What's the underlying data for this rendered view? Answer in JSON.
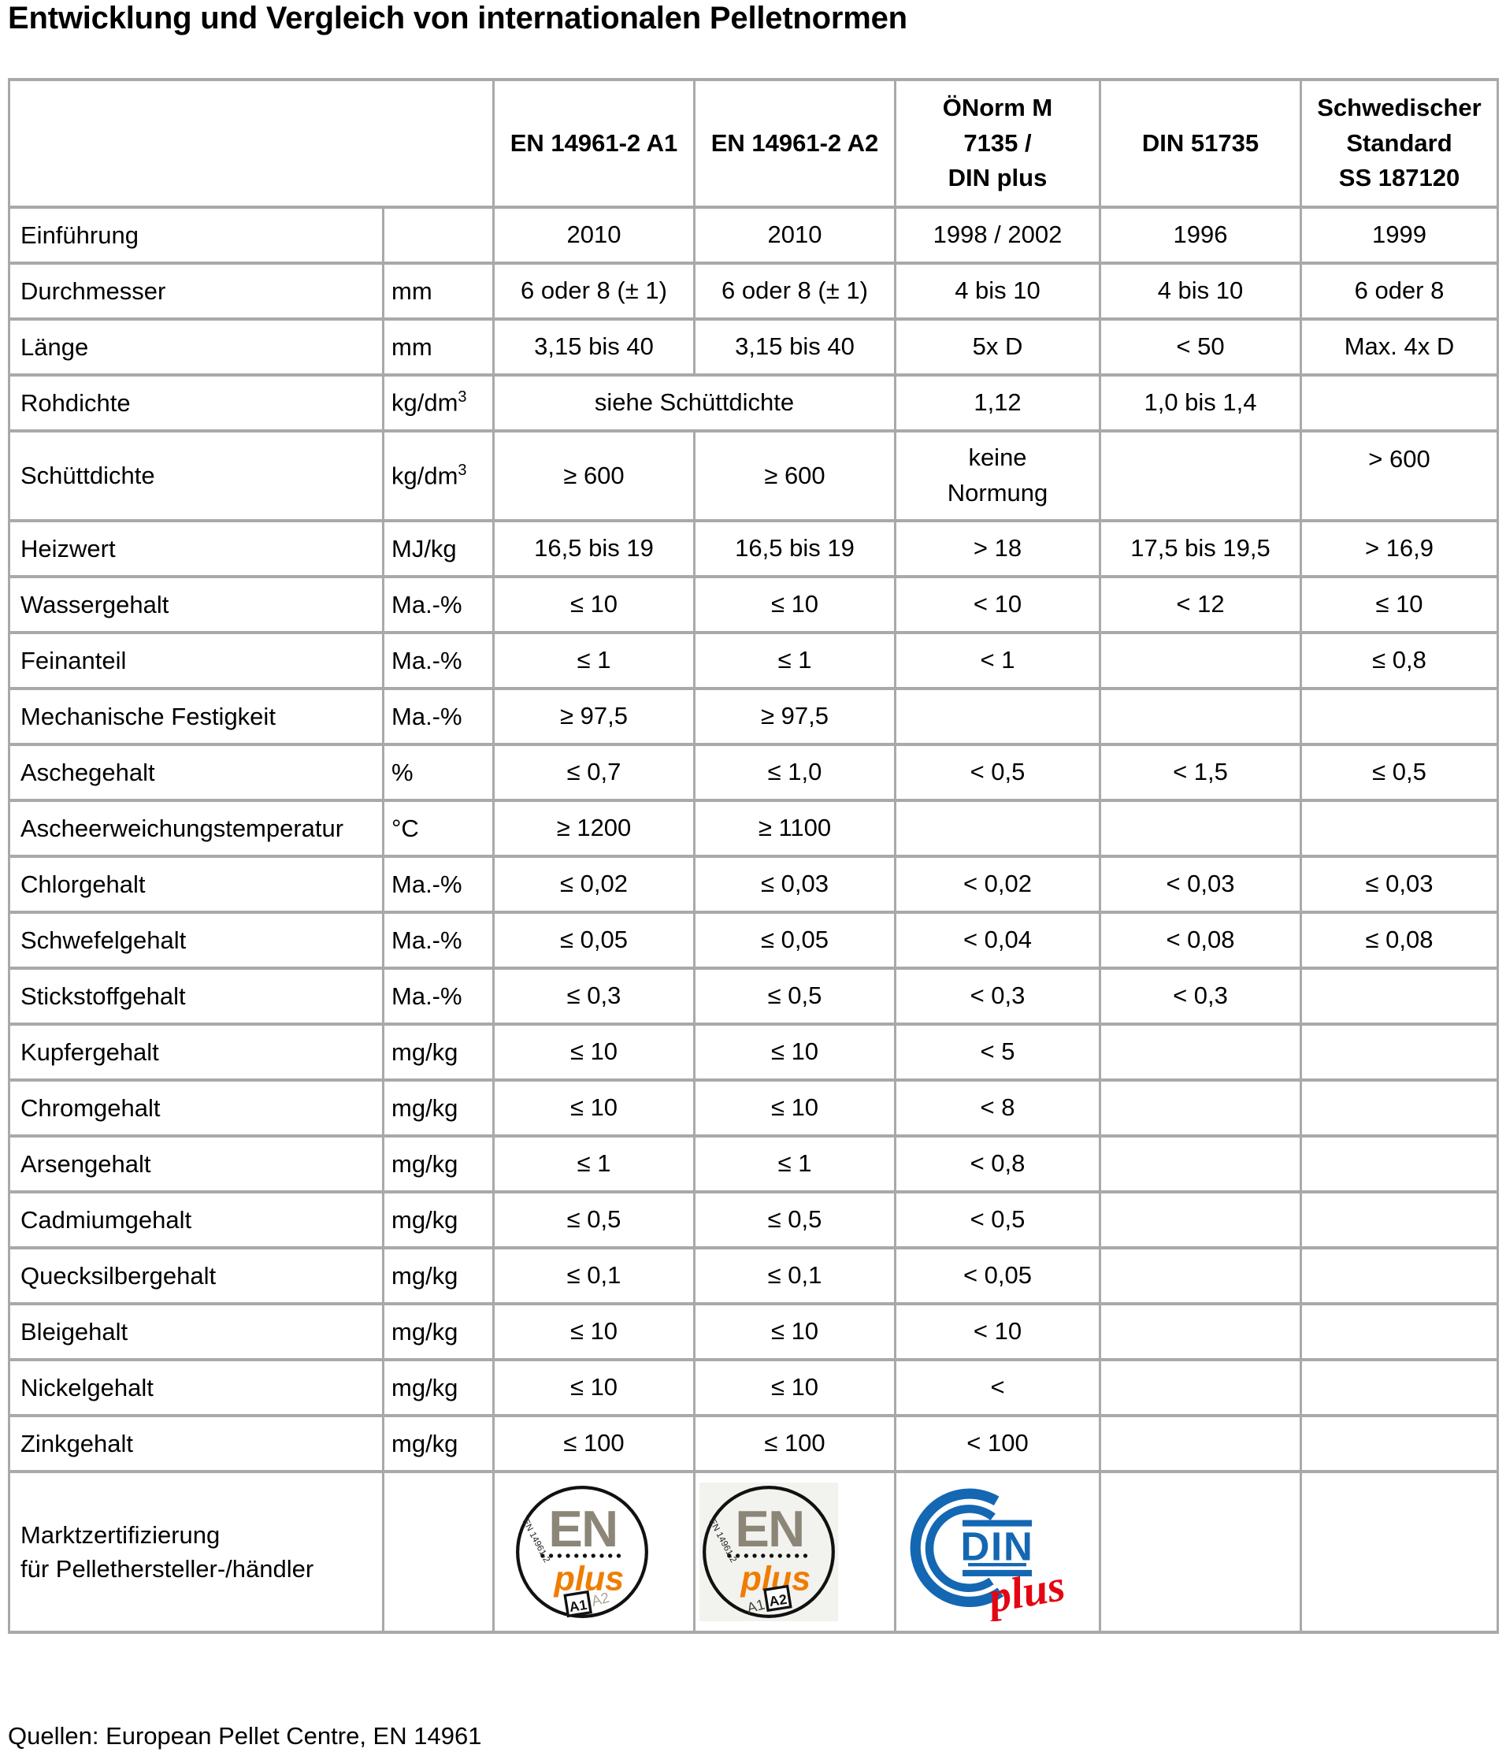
{
  "title": "Entwicklung und Vergleich von internationalen Pelletnormen",
  "footer": "Quellen: European Pellet Centre, EN 14961",
  "colors": {
    "border": "#a9a9a9",
    "en_gray": "#8c8678",
    "plus_orange": "#ef7d00",
    "din_blue": "#1467b2",
    "din_red": "#e30613",
    "text": "#000000"
  },
  "table": {
    "column_headers": [
      {
        "lines": [
          "EN 14961-2 A1"
        ]
      },
      {
        "lines": [
          "EN 14961-2 A2"
        ]
      },
      {
        "lines": [
          "ÖNorm M",
          "7135 /",
          "DIN plus"
        ]
      },
      {
        "lines": [
          "DIN 51735"
        ]
      },
      {
        "lines": [
          "Schwedischer",
          "Standard",
          "SS 187120"
        ]
      }
    ],
    "rows": [
      {
        "label": "Einführung",
        "unit": "",
        "cells": [
          "2010",
          "2010",
          "1998 / 2002",
          "1996",
          "1999"
        ]
      },
      {
        "label": "Durchmesser",
        "unit": "mm",
        "cells": [
          "6 oder 8 (± 1)",
          "6 oder 8 (± 1)",
          "4 bis 10",
          "4 bis 10",
          "6 oder 8"
        ]
      },
      {
        "label": "Länge",
        "unit": "mm",
        "cells": [
          "3,15 bis 40",
          "3,15 bis 40",
          "5x D",
          "< 50",
          "Max. 4x D"
        ]
      },
      {
        "label": "Rohdichte",
        "unit": "kg/dm³",
        "cells": [
          {
            "text": "siehe Schüttdichte",
            "colspan": 2
          },
          "1,12",
          "1,0 bis 1,4",
          ""
        ]
      },
      {
        "label": "Schüttdichte",
        "unit": "kg/dm³",
        "tall": 114,
        "cells": [
          "≥ 600",
          "≥ 600",
          "keine\nNormung",
          "",
          {
            "text": "> 600",
            "valign": "top"
          }
        ]
      },
      {
        "label": "Heizwert",
        "unit": "MJ/kg",
        "cells": [
          "16,5 bis 19",
          "16,5 bis 19",
          "> 18",
          "17,5 bis 19,5",
          "> 16,9"
        ]
      },
      {
        "label": "Wassergehalt",
        "unit": "Ma.-%",
        "cells": [
          "≤ 10",
          "≤ 10",
          "< 10",
          "< 12",
          "≤ 10"
        ]
      },
      {
        "label": "Feinanteil",
        "unit": "Ma.-%",
        "cells": [
          "≤ 1",
          "≤ 1",
          "< 1",
          "",
          "≤ 0,8"
        ]
      },
      {
        "label": "Mechanische Festigkeit",
        "unit": "Ma.-%",
        "cells": [
          "≥ 97,5",
          "≥ 97,5",
          "",
          "",
          ""
        ]
      },
      {
        "label": "Aschegehalt",
        "unit": "%",
        "cells": [
          "≤ 0,7",
          "≤ 1,0",
          "< 0,5",
          "< 1,5",
          "≤ 0,5"
        ]
      },
      {
        "label": "Ascheerweichungstemperatur",
        "unit": "°C",
        "cells": [
          "≥ 1200",
          "≥ 1100",
          "",
          "",
          ""
        ]
      },
      {
        "label": "Chlorgehalt",
        "unit": "Ma.-%",
        "cells": [
          "≤ 0,02",
          "≤ 0,03",
          "< 0,02",
          "< 0,03",
          "≤ 0,03"
        ]
      },
      {
        "label": "Schwefelgehalt",
        "unit": "Ma.-%",
        "cells": [
          "≤ 0,05",
          "≤ 0,05",
          "< 0,04",
          "< 0,08",
          "≤ 0,08"
        ]
      },
      {
        "label": "Stickstoffgehalt",
        "unit": "Ma.-%",
        "cells": [
          "≤ 0,3",
          "≤ 0,5",
          "< 0,3",
          "< 0,3",
          ""
        ]
      },
      {
        "label": "Kupfergehalt",
        "unit": "mg/kg",
        "cells": [
          "≤ 10",
          "≤ 10",
          "< 5",
          "",
          ""
        ]
      },
      {
        "label": "Chromgehalt",
        "unit": "mg/kg",
        "cells": [
          "≤ 10",
          "≤ 10",
          "< 8",
          "",
          ""
        ]
      },
      {
        "label": "Arsengehalt",
        "unit": "mg/kg",
        "cells": [
          "≤ 1",
          "≤ 1",
          "< 0,8",
          "",
          ""
        ]
      },
      {
        "label": "Cadmiumgehalt",
        "unit": "mg/kg",
        "cells": [
          "≤ 0,5",
          "≤ 0,5",
          "< 0,5",
          "",
          ""
        ]
      },
      {
        "label": "Quecksilbergehalt",
        "unit": "mg/kg",
        "cells": [
          "≤ 0,1",
          "≤ 0,1",
          "< 0,05",
          "",
          ""
        ]
      },
      {
        "label": "Bleigehalt",
        "unit": "mg/kg",
        "cells": [
          "≤ 10",
          "≤ 10",
          "< 10",
          "",
          ""
        ]
      },
      {
        "label": "Nickelgehalt",
        "unit": "mg/kg",
        "cells": [
          "≤ 10",
          "≤ 10",
          "<",
          "",
          ""
        ]
      },
      {
        "label": "Zinkgehalt",
        "unit": "mg/kg",
        "cells": [
          "≤ 100",
          "≤ 100",
          "< 100",
          "",
          ""
        ]
      },
      {
        "label": "Marktzertifizierung\nfür Pellethersteller-/händler",
        "unit": "",
        "tall": 204,
        "cells": [
          {
            "logo": "enplus-a1"
          },
          {
            "logo": "enplus-a2"
          },
          {
            "logo": "dinplus"
          },
          "",
          ""
        ]
      }
    ]
  },
  "logos": {
    "enplus_a1": {
      "en": "EN",
      "plus": "plus",
      "norm": "EN 14961-2",
      "a1": "A1",
      "a2": "A2",
      "highlight": "A1"
    },
    "enplus_a2": {
      "en": "EN",
      "plus": "plus",
      "norm": "EN 14961-2",
      "a1": "A1",
      "a2": "A2",
      "highlight": "A2"
    },
    "dinplus": {
      "din": "DIN",
      "plus": "plus"
    }
  }
}
